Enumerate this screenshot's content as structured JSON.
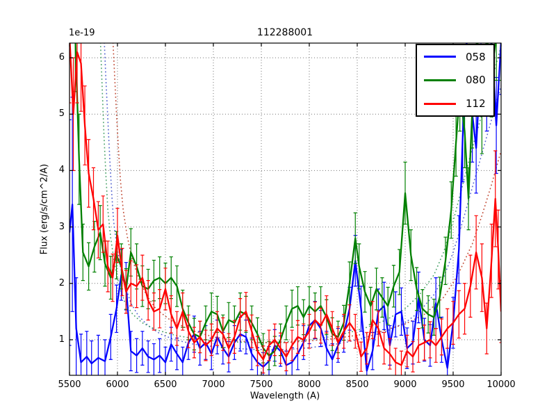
{
  "figure": {
    "background": "#ffffff",
    "title": "112288001",
    "offset_text": "1e-19",
    "xlabel": "Wavelength (A)",
    "ylabel": "Flux (erg/s/cm^2/A)"
  },
  "legend": {
    "position": "upper right",
    "entries": [
      {
        "label": "058",
        "color": "#0000ff"
      },
      {
        "label": "080",
        "color": "#008000"
      },
      {
        "label": "112",
        "color": "#ff0000"
      }
    ]
  },
  "chart_data": {
    "type": "line",
    "title": "112288001",
    "xlabel": "Wavelength (A)",
    "ylabel": "Flux (erg/s/cm^2/A)",
    "offset_text": "1e-19",
    "y_unit_scale": "1e-19",
    "xlim": [
      5500,
      10000
    ],
    "ylim": [
      0.37,
      6.26
    ],
    "xticks": [
      5500,
      6000,
      6500,
      7000,
      7500,
      8000,
      8500,
      9000,
      9500,
      10000
    ],
    "yticks": [
      1,
      2,
      3,
      4,
      5,
      6
    ],
    "grid": true,
    "grid_style": "dotted",
    "legend_position": "upper right",
    "series": [
      {
        "label": "058",
        "color": "#0000ff",
        "style": "solid-errorbar",
        "x": [
          5500,
          5530,
          5570,
          5620,
          5680,
          5730,
          5800,
          5870,
          5930,
          5990,
          6040,
          6090,
          6140,
          6200,
          6260,
          6320,
          6380,
          6440,
          6500,
          6560,
          6620,
          6680,
          6740,
          6800,
          6860,
          6920,
          6980,
          7040,
          7100,
          7160,
          7220,
          7280,
          7340,
          7400,
          7460,
          7520,
          7580,
          7640,
          7700,
          7760,
          7820,
          7880,
          7940,
          8000,
          8060,
          8120,
          8180,
          8240,
          8300,
          8360,
          8420,
          8480,
          8540,
          8600,
          8660,
          8720,
          8780,
          8840,
          8900,
          8960,
          9020,
          9080,
          9140,
          9200,
          9260,
          9320,
          9380,
          9440,
          9500,
          9560,
          9600,
          9640,
          9700,
          9740,
          9790,
          9850,
          9900,
          9950,
          10000
        ],
        "y": [
          2.9,
          3.4,
          1.2,
          0.6,
          0.7,
          0.58,
          0.68,
          0.62,
          1.05,
          1.55,
          2.15,
          1.95,
          0.8,
          0.72,
          0.85,
          0.7,
          0.65,
          0.72,
          0.6,
          0.92,
          0.75,
          0.6,
          0.95,
          1.1,
          0.85,
          0.95,
          0.75,
          1.05,
          0.85,
          0.7,
          0.95,
          1.1,
          1.05,
          0.75,
          0.6,
          0.52,
          0.62,
          0.9,
          0.8,
          0.55,
          0.6,
          0.75,
          0.95,
          1.25,
          1.35,
          1.2,
          0.85,
          0.65,
          0.9,
          1.1,
          1.55,
          2.4,
          1.55,
          0.45,
          0.8,
          1.5,
          1.6,
          0.9,
          1.45,
          1.5,
          0.85,
          0.95,
          1.75,
          1.0,
          0.9,
          1.65,
          1.0,
          0.5,
          1.3,
          2.6,
          4.6,
          6.3,
          5.0,
          4.4,
          6.0,
          5.6,
          6.3,
          4.8,
          6.3
        ],
        "err": [
          2.0,
          1.9,
          0.9,
          0.5,
          0.45,
          0.4,
          0.4,
          0.38,
          0.4,
          0.42,
          0.45,
          0.42,
          0.35,
          0.3,
          0.3,
          0.28,
          0.28,
          0.3,
          0.27,
          0.3,
          0.28,
          0.27,
          0.3,
          0.32,
          0.3,
          0.3,
          0.28,
          0.3,
          0.28,
          0.27,
          0.3,
          0.3,
          0.3,
          0.28,
          0.26,
          0.25,
          0.26,
          0.28,
          0.27,
          0.25,
          0.26,
          0.28,
          0.3,
          0.32,
          0.33,
          0.32,
          0.3,
          0.28,
          0.3,
          0.32,
          0.38,
          0.45,
          0.4,
          0.3,
          0.33,
          0.4,
          0.42,
          0.35,
          0.4,
          0.42,
          0.36,
          0.38,
          0.45,
          0.38,
          0.37,
          0.45,
          0.4,
          0.35,
          0.45,
          0.6,
          0.8,
          0.9,
          0.85,
          0.8,
          0.9,
          0.9,
          0.95,
          0.85,
          0.95
        ]
      },
      {
        "label": "080",
        "color": "#008000",
        "style": "solid-errorbar",
        "x": [
          5560,
          5600,
          5640,
          5700,
          5760,
          5820,
          5870,
          5930,
          5990,
          6040,
          6090,
          6140,
          6200,
          6260,
          6320,
          6380,
          6440,
          6500,
          6560,
          6620,
          6680,
          6740,
          6800,
          6860,
          6920,
          6980,
          7040,
          7100,
          7160,
          7220,
          7280,
          7340,
          7400,
          7460,
          7520,
          7580,
          7640,
          7700,
          7760,
          7820,
          7880,
          7940,
          8000,
          8060,
          8120,
          8180,
          8240,
          8300,
          8360,
          8420,
          8480,
          8520,
          8580,
          8640,
          8700,
          8760,
          8820,
          8880,
          8940,
          9000,
          9060,
          9120,
          9180,
          9240,
          9300,
          9360,
          9420,
          9480,
          9530,
          9570,
          9620,
          9660,
          9700,
          9750,
          9800,
          9850,
          9900,
          9950,
          10000
        ],
        "y": [
          6.4,
          4.2,
          2.55,
          2.3,
          2.65,
          2.9,
          2.35,
          2.1,
          2.5,
          2.3,
          1.9,
          2.55,
          2.3,
          1.95,
          1.9,
          2.05,
          2.1,
          2.0,
          2.1,
          1.95,
          1.55,
          1.3,
          1.1,
          1.05,
          1.3,
          1.5,
          1.45,
          1.15,
          1.35,
          1.3,
          1.5,
          1.45,
          1.3,
          1.1,
          0.85,
          0.72,
          0.8,
          1.0,
          1.3,
          1.55,
          1.6,
          1.4,
          1.6,
          1.5,
          1.6,
          1.4,
          1.1,
          1.05,
          1.3,
          2.0,
          2.8,
          2.3,
          1.85,
          1.6,
          1.9,
          1.75,
          1.6,
          1.95,
          2.2,
          3.6,
          2.5,
          1.9,
          1.55,
          1.45,
          1.4,
          1.75,
          2.4,
          3.3,
          4.5,
          5.4,
          4.7,
          3.5,
          5.1,
          6.4,
          5.0,
          6.4,
          5.7,
          6.4,
          6.4
        ],
        "err": [
          1.0,
          0.8,
          0.5,
          0.42,
          0.45,
          0.48,
          0.4,
          0.38,
          0.42,
          0.4,
          0.36,
          0.42,
          0.4,
          0.36,
          0.35,
          0.36,
          0.37,
          0.36,
          0.37,
          0.36,
          0.33,
          0.3,
          0.28,
          0.28,
          0.3,
          0.33,
          0.32,
          0.29,
          0.31,
          0.3,
          0.33,
          0.32,
          0.3,
          0.29,
          0.26,
          0.25,
          0.26,
          0.28,
          0.3,
          0.33,
          0.34,
          0.31,
          0.34,
          0.33,
          0.34,
          0.31,
          0.29,
          0.28,
          0.31,
          0.38,
          0.45,
          0.4,
          0.36,
          0.33,
          0.37,
          0.35,
          0.33,
          0.37,
          0.4,
          0.55,
          0.45,
          0.38,
          0.34,
          0.33,
          0.32,
          0.36,
          0.42,
          0.5,
          0.6,
          0.7,
          0.65,
          0.55,
          0.7,
          0.8,
          0.7,
          0.8,
          0.75,
          0.8,
          0.8
        ]
      },
      {
        "label": "112",
        "color": "#ff0000",
        "style": "solid-errorbar",
        "x": [
          5500,
          5540,
          5580,
          5620,
          5660,
          5700,
          5750,
          5800,
          5850,
          5900,
          5950,
          6000,
          6050,
          6090,
          6140,
          6200,
          6260,
          6320,
          6380,
          6440,
          6500,
          6560,
          6620,
          6680,
          6740,
          6800,
          6860,
          6920,
          6980,
          7040,
          7100,
          7160,
          7220,
          7280,
          7340,
          7400,
          7460,
          7520,
          7580,
          7640,
          7700,
          7760,
          7820,
          7880,
          7940,
          8000,
          8060,
          8120,
          8180,
          8240,
          8300,
          8360,
          8420,
          8480,
          8540,
          8600,
          8660,
          8720,
          8780,
          8840,
          8900,
          8960,
          9020,
          9080,
          9140,
          9200,
          9260,
          9320,
          9380,
          9440,
          9500,
          9560,
          9620,
          9680,
          9740,
          9800,
          9850,
          9900,
          9940,
          9970,
          10000
        ],
        "y": [
          6.4,
          5.0,
          6.1,
          5.9,
          4.8,
          3.95,
          3.5,
          2.95,
          3.05,
          2.3,
          2.1,
          2.85,
          2.2,
          1.85,
          2.0,
          1.95,
          2.1,
          1.7,
          1.5,
          1.55,
          1.9,
          1.45,
          1.2,
          1.5,
          1.15,
          0.95,
          1.05,
          0.9,
          1.0,
          1.2,
          1.1,
          0.85,
          1.05,
          1.4,
          1.5,
          1.15,
          0.8,
          0.65,
          0.9,
          1.0,
          0.85,
          0.7,
          0.9,
          1.05,
          1.0,
          1.15,
          1.35,
          1.25,
          1.45,
          1.2,
          0.95,
          1.15,
          1.3,
          1.15,
          0.7,
          0.85,
          1.35,
          1.2,
          0.85,
          0.75,
          0.6,
          0.55,
          0.8,
          0.7,
          0.9,
          0.95,
          1.0,
          0.9,
          1.05,
          1.2,
          1.3,
          1.45,
          1.55,
          1.95,
          2.55,
          2.1,
          1.2,
          2.4,
          3.5,
          2.6,
          1.5
        ],
        "err": [
          1.2,
          1.0,
          0.9,
          0.85,
          0.7,
          0.6,
          0.55,
          0.5,
          0.5,
          0.45,
          0.42,
          0.48,
          0.42,
          0.38,
          0.4,
          0.38,
          0.4,
          0.35,
          0.33,
          0.34,
          0.37,
          0.33,
          0.3,
          0.33,
          0.29,
          0.27,
          0.28,
          0.27,
          0.28,
          0.3,
          0.29,
          0.26,
          0.29,
          0.33,
          0.34,
          0.29,
          0.26,
          0.24,
          0.27,
          0.28,
          0.27,
          0.25,
          0.27,
          0.29,
          0.28,
          0.3,
          0.32,
          0.31,
          0.33,
          0.3,
          0.28,
          0.3,
          0.32,
          0.3,
          0.26,
          0.28,
          0.33,
          0.31,
          0.28,
          0.27,
          0.25,
          0.25,
          0.28,
          0.27,
          0.3,
          0.31,
          0.32,
          0.3,
          0.32,
          0.35,
          0.38,
          0.42,
          0.45,
          0.55,
          0.65,
          0.6,
          0.45,
          0.65,
          0.85,
          0.7,
          0.55
        ]
      }
    ],
    "model_series": [
      {
        "label": "058 model",
        "color": "#4455cc",
        "style": "dotted",
        "x": [
          5860,
          5880,
          5900,
          5920,
          5940,
          5960,
          5990,
          6030,
          6080,
          6140,
          6220,
          6320,
          6450,
          6600,
          6800,
          7000,
          7200,
          7400,
          7600,
          7800,
          8000,
          8200,
          8400,
          8600,
          8800,
          9000,
          9150,
          9300,
          9400,
          9500,
          9600,
          9700,
          9800,
          9900,
          10000
        ],
        "y": [
          6.4,
          5.6,
          4.9,
          4.2,
          3.6,
          3.1,
          2.7,
          2.3,
          1.95,
          1.65,
          1.42,
          1.25,
          1.1,
          1.0,
          0.92,
          0.88,
          0.85,
          0.83,
          0.82,
          0.83,
          0.86,
          0.9,
          0.96,
          1.05,
          1.15,
          1.3,
          1.5,
          1.8,
          2.1,
          2.55,
          3.1,
          3.7,
          4.3,
          4.9,
          5.5
        ]
      },
      {
        "label": "080 model",
        "color": "#3a9a5c",
        "style": "dotted",
        "x": [
          5820,
          5840,
          5860,
          5880,
          5900,
          5930,
          5970,
          6020,
          6080,
          6160,
          6260,
          6400,
          6600,
          6800,
          7000,
          7200,
          7400,
          7600,
          7800,
          8000,
          8200,
          8400,
          8600,
          8800,
          9000,
          9150,
          9300,
          9400,
          9500,
          9600,
          9700,
          9800,
          9900,
          10000
        ],
        "y": [
          6.4,
          5.5,
          4.6,
          3.9,
          3.3,
          2.8,
          2.35,
          1.95,
          1.65,
          1.45,
          1.3,
          1.18,
          1.08,
          1.02,
          0.98,
          0.96,
          0.95,
          0.95,
          0.97,
          1.0,
          1.05,
          1.12,
          1.22,
          1.35,
          1.55,
          1.8,
          2.15,
          2.55,
          3.1,
          3.75,
          4.4,
          5.0,
          5.6,
          6.2
        ]
      },
      {
        "label": "112 model",
        "color": "#bb3a22",
        "style": "dotted",
        "x": [
          5950,
          5970,
          5990,
          6010,
          6030,
          6060,
          6100,
          6150,
          6220,
          6300,
          6400,
          6550,
          6750,
          7000,
          7250,
          7500,
          7750,
          8000,
          8250,
          8500,
          8750,
          9000,
          9200,
          9400,
          9550,
          9700,
          9800,
          9900,
          10000
        ],
        "y": [
          6.4,
          5.7,
          5.0,
          4.4,
          3.85,
          3.3,
          2.85,
          2.45,
          2.1,
          1.8,
          1.55,
          1.35,
          1.18,
          1.05,
          0.98,
          0.95,
          0.95,
          0.98,
          1.02,
          1.08,
          1.15,
          1.28,
          1.45,
          1.75,
          2.15,
          2.7,
          3.2,
          3.75,
          4.35
        ]
      }
    ]
  }
}
